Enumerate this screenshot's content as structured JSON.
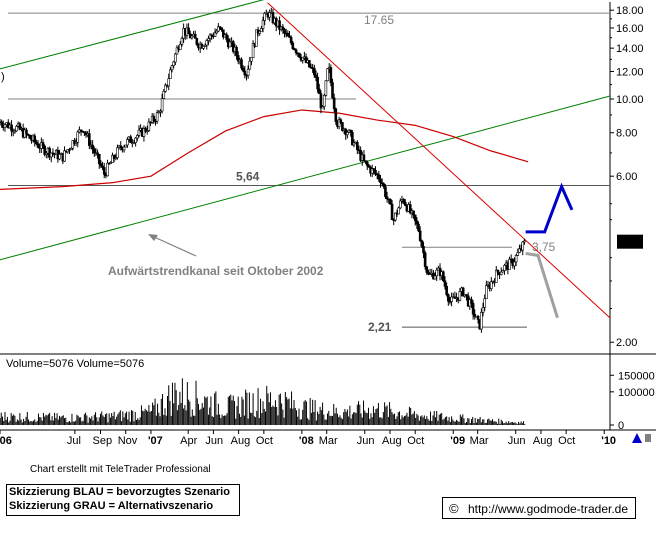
{
  "chart_data": {
    "type": "candlestick",
    "title": "",
    "price_axis": {
      "scale": "log",
      "range": [
        1.85,
        19.0
      ],
      "ticks": [
        "2.00",
        "6.00",
        "8.00",
        "10.00",
        "12.00",
        "14.00",
        "16.00",
        "18.00"
      ],
      "current_value": "3.89"
    },
    "volume_axis": {
      "range": [
        0,
        190000
      ],
      "ticks": [
        "150000",
        "100000",
        "0"
      ],
      "label": "Volume=5076 Volume=5076"
    },
    "time_axis": {
      "range": [
        "2006-01-01",
        "2010-01-15"
      ],
      "labels": [
        {
          "text": "'06",
          "date": "2006-01-01"
        },
        {
          "text": "Jul",
          "date": "2006-07-01"
        },
        {
          "text": "Sep",
          "date": "2006-09-01"
        },
        {
          "text": "Nov",
          "date": "2006-11-01"
        },
        {
          "text": "'07",
          "date": "2007-01-01"
        },
        {
          "text": "Apr",
          "date": "2007-04-01"
        },
        {
          "text": "Jun",
          "date": "2007-06-01"
        },
        {
          "text": "Aug",
          "date": "2007-08-01"
        },
        {
          "text": "Oct",
          "date": "2007-10-01"
        },
        {
          "text": "'08",
          "date": "2008-01-01"
        },
        {
          "text": "Mar",
          "date": "2008-03-01"
        },
        {
          "text": "Jun",
          "date": "2008-06-01"
        },
        {
          "text": "Aug",
          "date": "2008-08-01"
        },
        {
          "text": "Oct",
          "date": "2008-10-01"
        },
        {
          "text": "'09",
          "date": "2009-01-01"
        },
        {
          "text": "Mar",
          "date": "2009-03-01"
        },
        {
          "text": "Jun",
          "date": "2009-06-01"
        },
        {
          "text": "Aug",
          "date": "2009-08-01"
        },
        {
          "text": "Oct",
          "date": "2009-10-01"
        },
        {
          "text": "'10",
          "date": "2010-01-01"
        }
      ]
    },
    "price_anchors": [
      [
        "2006-01-01",
        8.6
      ],
      [
        "2006-02-15",
        8.2
      ],
      [
        "2006-04-15",
        7.2
      ],
      [
        "2006-06-01",
        6.8
      ],
      [
        "2006-07-20",
        8.3
      ],
      [
        "2006-09-10",
        6.1
      ],
      [
        "2006-10-20",
        7.3
      ],
      [
        "2006-12-15",
        8.1
      ],
      [
        "2007-01-20",
        9.1
      ],
      [
        "2007-02-20",
        12.4
      ],
      [
        "2007-03-20",
        15.8
      ],
      [
        "2007-05-01",
        14.3
      ],
      [
        "2007-06-15",
        15.9
      ],
      [
        "2007-07-20",
        13.9
      ],
      [
        "2007-08-20",
        11.9
      ],
      [
        "2007-09-15",
        15.6
      ],
      [
        "2007-10-10",
        17.7
      ],
      [
        "2007-11-20",
        15.4
      ],
      [
        "2008-01-01",
        13.2
      ],
      [
        "2008-02-01",
        11.8
      ],
      [
        "2008-02-20",
        9.2
      ],
      [
        "2008-03-05",
        12.5
      ],
      [
        "2008-03-25",
        8.6
      ],
      [
        "2008-04-20",
        8.1
      ],
      [
        "2008-06-01",
        6.5
      ],
      [
        "2008-07-10",
        5.9
      ],
      [
        "2008-08-10",
        4.5
      ],
      [
        "2008-09-01",
        5.2
      ],
      [
        "2008-10-10",
        4.2
      ],
      [
        "2008-11-01",
        3.1
      ],
      [
        "2008-12-01",
        3.2
      ],
      [
        "2008-12-25",
        2.6
      ],
      [
        "2009-01-25",
        2.8
      ],
      [
        "2009-02-15",
        2.5
      ],
      [
        "2009-03-05",
        2.21
      ],
      [
        "2009-03-20",
        2.8
      ],
      [
        "2009-04-20",
        3.2
      ],
      [
        "2009-05-25",
        3.4
      ],
      [
        "2009-06-25",
        3.89
      ]
    ],
    "moving_average": [
      [
        "2006-01-01",
        5.5
      ],
      [
        "2006-06-01",
        5.6
      ],
      [
        "2006-10-01",
        5.75
      ],
      [
        "2007-01-01",
        6.0
      ],
      [
        "2007-04-01",
        7.0
      ],
      [
        "2007-07-01",
        8.1
      ],
      [
        "2007-10-01",
        8.9
      ],
      [
        "2008-01-01",
        9.3
      ],
      [
        "2008-04-01",
        9.1
      ],
      [
        "2008-07-01",
        8.7
      ],
      [
        "2008-10-01",
        8.4
      ],
      [
        "2009-01-01",
        7.8
      ],
      [
        "2009-04-01",
        7.1
      ],
      [
        "2009-07-01",
        6.6
      ]
    ],
    "trendlines": [
      {
        "kind": "channel-upper",
        "color": "#008000",
        "from": [
          "2006-01-01",
          12.2
        ],
        "to": [
          "2007-10-15",
          19.5
        ]
      },
      {
        "kind": "channel-lower",
        "color": "#008000",
        "from": [
          "2006-01-01",
          3.45
        ],
        "to": [
          "2010-01-15",
          10.2
        ]
      },
      {
        "kind": "downtrend",
        "color": "#dd0000",
        "from": [
          "2007-10-10",
          18.9
        ],
        "to": [
          "2010-01-15",
          2.35
        ]
      }
    ],
    "levels": [
      {
        "value": 17.65,
        "label": "17.65",
        "color": "#808080"
      },
      {
        "value": 10.0,
        "label": "",
        "color": "#808080"
      },
      {
        "value": 5.64,
        "label": "5,64",
        "color": "#555555"
      },
      {
        "value": 3.75,
        "label": "3,75",
        "color": "#808080"
      },
      {
        "value": 2.21,
        "label": "2,21",
        "color": "#555555"
      }
    ],
    "scenario_blue": [
      [
        "2009-06-25",
        4.15
      ],
      [
        "2009-08-10",
        4.15
      ],
      [
        "2009-09-20",
        5.6
      ],
      [
        "2009-10-15",
        4.8
      ]
    ],
    "scenario_grey": [
      [
        "2009-06-25",
        3.6
      ],
      [
        "2009-07-25",
        3.55
      ],
      [
        "2009-09-10",
        2.35
      ]
    ],
    "annotation": "Aufwärtstrendkanal seit Oktober 2002",
    "volume_anchors": [
      [
        "2006-01-01",
        30000
      ],
      [
        "2006-06-01",
        25000
      ],
      [
        "2006-10-01",
        30000
      ],
      [
        "2007-01-01",
        45000
      ],
      [
        "2007-03-01",
        110000
      ],
      [
        "2007-05-01",
        90000
      ],
      [
        "2007-07-01",
        60000
      ],
      [
        "2007-09-01",
        80000
      ],
      [
        "2007-11-01",
        90000
      ],
      [
        "2008-01-01",
        60000
      ],
      [
        "2008-04-01",
        45000
      ],
      [
        "2008-07-01",
        55000
      ],
      [
        "2008-10-01",
        35000
      ],
      [
        "2009-01-01",
        25000
      ],
      [
        "2009-04-01",
        15000
      ],
      [
        "2009-06-25",
        8000
      ]
    ]
  },
  "footer": {
    "credit": "Chart erstellt mit TeleTrader Professional",
    "legend_blue": "Skizzierung BLAU = bevorzugtes Szenario",
    "legend_grey": "Skizzierung GRAU = Alternativszenario",
    "copyright_symbol": "©",
    "url": "http://www.godmode-trader.de"
  },
  "colors": {
    "channel": "#008000",
    "downtrend": "#dd0000",
    "moving_average": "#cc0000",
    "scenario_blue": "#0000cc",
    "scenario_grey": "#a0a0a0",
    "price": "#000000",
    "arrow": "#808080",
    "current_badge": "#000000",
    "icon_accent": "#0000cc"
  },
  "icons": [
    "time-scroll-icon"
  ]
}
